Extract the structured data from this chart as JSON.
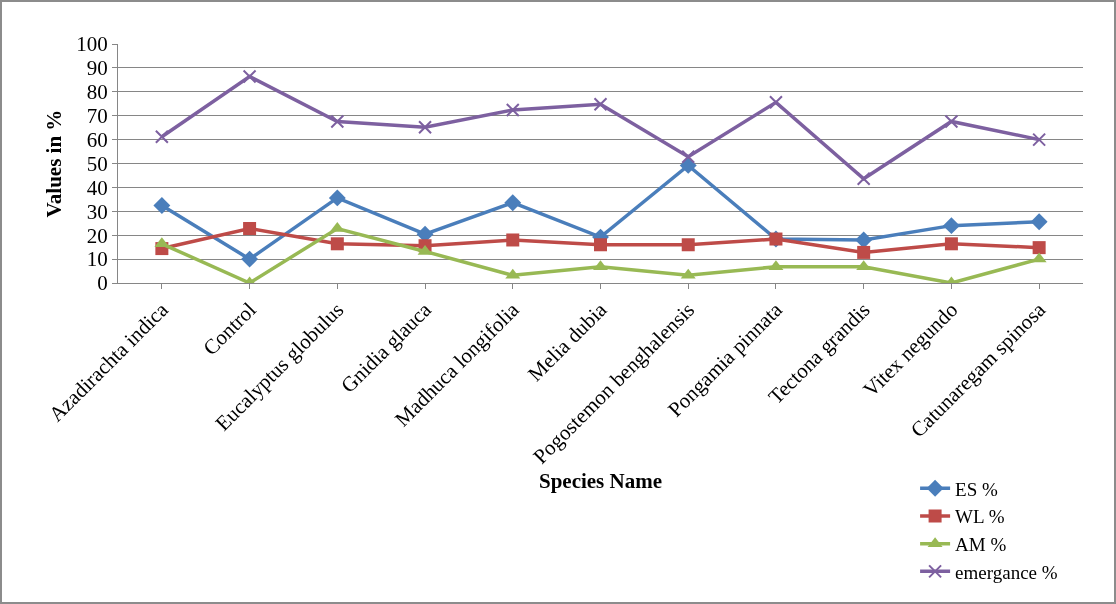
{
  "chart_data": {
    "type": "line",
    "xlabel": "Species Name",
    "ylabel": "Values in %",
    "categories": [
      "Azadirachta indica",
      "Control",
      "Eucalyptus globulus",
      "Gnidia glauca",
      "Madhuca longifolia",
      "Melia dubia",
      "Pogostemon benghalensis",
      "Pongamia pinnata",
      "Tectona grandis",
      "Vitex negundo",
      "Catunaregam spinosa"
    ],
    "series": [
      {
        "name": "ES %",
        "color": "#4a7ebb",
        "marker": "diamond",
        "values": [
          32.4,
          10,
          35.6,
          20.4,
          33.6,
          19.2,
          49.2,
          18.4,
          18,
          24,
          25.6
        ]
      },
      {
        "name": "WL %",
        "color": "#be4b48",
        "marker": "square",
        "values": [
          14.4,
          22.8,
          16.4,
          15.6,
          18,
          16,
          16,
          18.4,
          12.8,
          16.4,
          14.8
        ]
      },
      {
        "name": "AM %",
        "color": "#98b954",
        "marker": "triangle",
        "values": [
          16.4,
          0,
          22.8,
          13.2,
          3.2,
          6.8,
          3.2,
          6.8,
          6.8,
          0,
          10
        ]
      },
      {
        "name": "emergance %",
        "color": "#7d60a0",
        "marker": "cross",
        "values": [
          61.2,
          86.4,
          67.6,
          65.2,
          72.4,
          74.8,
          52.8,
          75.6,
          43.6,
          67.6,
          60
        ]
      }
    ],
    "ylim": [
      0,
      100
    ],
    "yticks": [
      0,
      10,
      20,
      30,
      40,
      50,
      60,
      70,
      80,
      90,
      100
    ],
    "grid": "y",
    "legend": "bottom right",
    "line_style": "solid"
  }
}
